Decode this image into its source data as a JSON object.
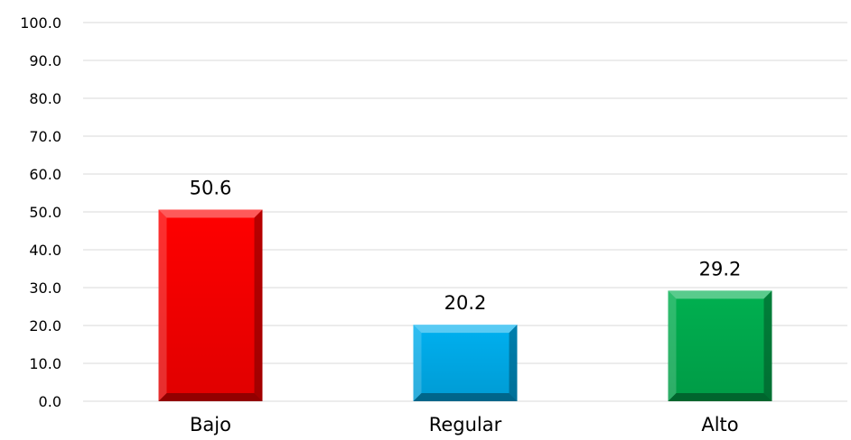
{
  "chart_data": {
    "type": "bar",
    "categories": [
      "Bajo",
      "Regular",
      "Alto"
    ],
    "values": [
      50.6,
      20.2,
      29.2
    ],
    "value_labels": [
      "50.6",
      "20.2",
      "29.2"
    ],
    "colors": [
      "#ff0000",
      "#00b0f0",
      "#00b050"
    ],
    "title": "",
    "xlabel": "",
    "ylabel": "",
    "ylim": [
      0,
      100
    ],
    "y_ticks": [
      0,
      10,
      20,
      30,
      40,
      50,
      60,
      70,
      80,
      90,
      100
    ],
    "y_tick_labels": [
      "0.0",
      "10.0",
      "20.0",
      "30.0",
      "40.0",
      "50.0",
      "60.0",
      "70.0",
      "80.0",
      "90.0",
      "100.0"
    ],
    "grid": true,
    "legend": "none"
  }
}
